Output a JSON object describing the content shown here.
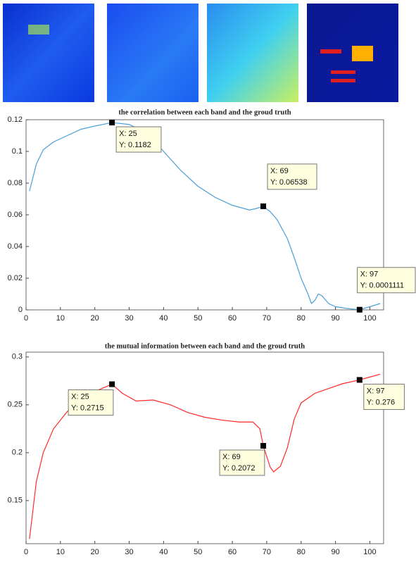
{
  "chart_data": [
    {
      "type": "line",
      "title": "the correlation between each band and the groud truth",
      "x": [
        1,
        3,
        5,
        8,
        12,
        16,
        20,
        25,
        30,
        33,
        36,
        40,
        45,
        50,
        55,
        60,
        65,
        67,
        69,
        71,
        73,
        76,
        78,
        80,
        82,
        83,
        84,
        85,
        86,
        88,
        90,
        93,
        95,
        97,
        100,
        103
      ],
      "series": [
        {
          "color": "#4a9fd8",
          "values": [
            0.075,
            0.092,
            0.101,
            0.106,
            0.11,
            0.114,
            0.116,
            0.1182,
            0.117,
            0.114,
            0.11,
            0.1,
            0.088,
            0.078,
            0.071,
            0.066,
            0.063,
            0.064,
            0.06538,
            0.062,
            0.057,
            0.045,
            0.033,
            0.02,
            0.01,
            0.004,
            0.006,
            0.01,
            0.009,
            0.004,
            0.002,
            0.001,
            0.0005,
            0.0001111,
            0.002,
            0.004
          ]
        }
      ],
      "xlim": [
        0,
        104
      ],
      "xticks": [
        0,
        10,
        20,
        30,
        40,
        50,
        60,
        70,
        80,
        90,
        100
      ],
      "ylim": [
        0,
        0.12
      ],
      "yticks": [
        0,
        0.02,
        0.04,
        0.06,
        0.08,
        0.1,
        0.12
      ],
      "annotations": [
        {
          "x": 25,
          "y": 0.1182,
          "lines": [
            "X: 25",
            "Y: 0.1182"
          ]
        },
        {
          "x": 69,
          "y": 0.06538,
          "lines": [
            "X: 69",
            "Y: 0.06538"
          ]
        },
        {
          "x": 97,
          "y": 0.0001111,
          "lines": [
            "X: 97",
            "Y: 0.0001111"
          ]
        }
      ]
    },
    {
      "type": "line",
      "title": "the mutual information between each band and the groud truth",
      "x": [
        1,
        2,
        3,
        5,
        8,
        12,
        16,
        20,
        25,
        28,
        32,
        37,
        42,
        47,
        52,
        57,
        62,
        66,
        68,
        69,
        71,
        72,
        74,
        76,
        78,
        80,
        84,
        88,
        92,
        97,
        100,
        103
      ],
      "series": [
        {
          "color": "#ff2a2a",
          "values": [
            0.11,
            0.14,
            0.17,
            0.2,
            0.225,
            0.243,
            0.255,
            0.264,
            0.2715,
            0.262,
            0.254,
            0.255,
            0.25,
            0.242,
            0.237,
            0.234,
            0.232,
            0.232,
            0.225,
            0.2072,
            0.185,
            0.18,
            0.186,
            0.205,
            0.235,
            0.252,
            0.262,
            0.267,
            0.272,
            0.276,
            0.279,
            0.282
          ]
        }
      ],
      "xlim": [
        0,
        104
      ],
      "xticks": [
        0,
        10,
        20,
        30,
        40,
        50,
        60,
        70,
        80,
        90,
        100
      ],
      "ylim": [
        0.105,
        0.305
      ],
      "yticks": [
        0.15,
        0.2,
        0.25,
        0.3
      ],
      "annotations": [
        {
          "x": 25,
          "y": 0.2715,
          "lines": [
            "X: 25",
            "Y: 0.2715"
          ]
        },
        {
          "x": 69,
          "y": 0.2072,
          "lines": [
            "X: 69",
            "Y: 0.2072"
          ]
        },
        {
          "x": 97,
          "y": 0.276,
          "lines": [
            "X: 97",
            "Y: 0.276"
          ]
        }
      ]
    }
  ]
}
